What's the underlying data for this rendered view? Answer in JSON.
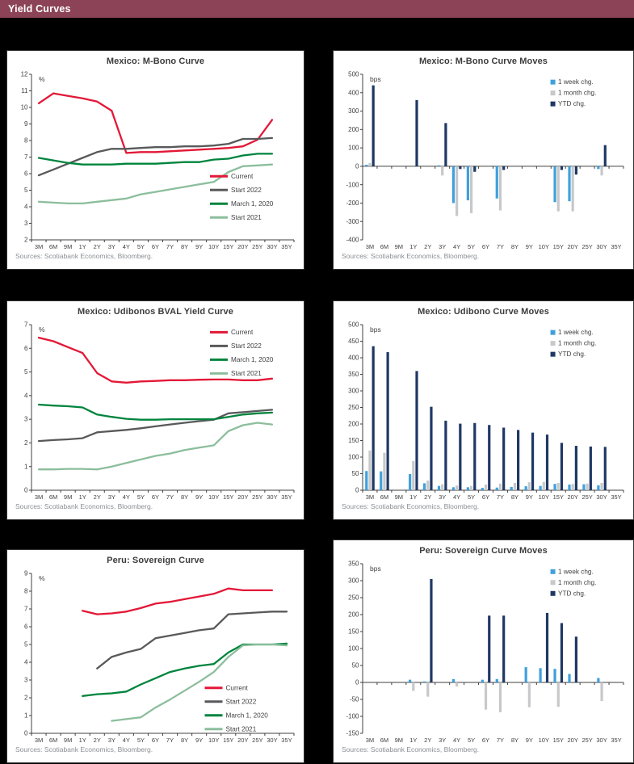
{
  "page": {
    "header": "Yield Curves",
    "header_bg": "#8C4357",
    "page_bg": "#000000"
  },
  "colors": {
    "red": "#E31837",
    "dark_gray": "#58595B",
    "green": "#00843D",
    "light_green": "#8CBE9C",
    "week_blue": "#3FA0DC",
    "month_gray": "#C7C8CA",
    "ytd_navy": "#1F3864",
    "axis": "#404040",
    "sources_text": "#8a8f94"
  },
  "chart_data": [
    {
      "type": "line",
      "title": "Mexico: M-Bono Curve",
      "unit": "%",
      "sources": "Sources: Scotiabank Economics, Bloomberg.",
      "categories": [
        "3M",
        "6M",
        "9M",
        "1Y",
        "2Y",
        "3Y",
        "4Y",
        "5Y",
        "6Y",
        "7Y",
        "8Y",
        "9Y",
        "10Y",
        "15Y",
        "20Y",
        "25Y",
        "30Y",
        "35Y"
      ],
      "ylim": [
        2,
        12
      ],
      "y_step": 1,
      "legend_anchor": "right-center",
      "series": [
        {
          "name": "Current",
          "color_key": "red",
          "values": [
            10.25,
            10.85,
            10.7,
            10.55,
            10.35,
            9.8,
            7.25,
            7.3,
            7.3,
            7.35,
            7.4,
            7.45,
            7.5,
            7.55,
            7.65,
            8.05,
            9.25,
            null
          ]
        },
        {
          "name": "Start 2022",
          "color_key": "dark_gray",
          "values": [
            5.9,
            6.25,
            6.6,
            6.95,
            7.3,
            7.5,
            7.5,
            7.55,
            7.6,
            7.6,
            7.65,
            7.65,
            7.7,
            7.8,
            8.1,
            8.1,
            8.15,
            null
          ]
        },
        {
          "name": "March 1, 2020",
          "color_key": "green",
          "values": [
            6.95,
            6.8,
            6.65,
            6.55,
            6.55,
            6.55,
            6.6,
            6.6,
            6.6,
            6.65,
            6.7,
            6.7,
            6.85,
            6.9,
            7.1,
            7.2,
            7.2,
            null
          ]
        },
        {
          "name": "Start 2021",
          "color_key": "light_green",
          "values": [
            4.3,
            4.25,
            4.2,
            4.2,
            4.3,
            4.4,
            4.5,
            4.75,
            4.9,
            5.05,
            5.2,
            5.35,
            5.5,
            6.1,
            6.45,
            6.5,
            6.55,
            null
          ]
        }
      ]
    },
    {
      "type": "bar",
      "title": "Mexico: M-Bono Curve Moves",
      "unit": "bps",
      "sources": "Sources: Scotiabank Economics, Bloomberg.",
      "categories": [
        "3M",
        "6M",
        "9M",
        "1Y",
        "2Y",
        "3Y",
        "4Y",
        "5Y",
        "6Y",
        "7Y",
        "8Y",
        "9Y",
        "10Y",
        "15Y",
        "20Y",
        "25Y",
        "30Y",
        "35Y"
      ],
      "ylim": [
        -400,
        500
      ],
      "y_step": 100,
      "legend_anchor": "top-right",
      "series": [
        {
          "name": "1 week chg.",
          "color_key": "week_blue",
          "values": [
            8,
            0,
            0,
            0,
            0,
            5,
            -200,
            -185,
            0,
            -175,
            0,
            0,
            0,
            -195,
            -190,
            0,
            -15,
            0
          ]
        },
        {
          "name": "1 month chg.",
          "color_key": "month_gray",
          "values": [
            18,
            0,
            0,
            0,
            0,
            -50,
            -270,
            -255,
            0,
            -240,
            0,
            0,
            0,
            -245,
            -245,
            0,
            -50,
            0
          ]
        },
        {
          "name": "YTD chg.",
          "color_key": "ytd_navy",
          "values": [
            440,
            0,
            0,
            360,
            0,
            235,
            -15,
            -30,
            0,
            -20,
            0,
            0,
            0,
            -20,
            -45,
            0,
            115,
            0
          ]
        }
      ]
    },
    {
      "type": "line",
      "title": "Mexico: Udibonos BVAL Yield Curve",
      "unit": "%",
      "sources": "Sources: Scotiabank Economics, Bloomberg.",
      "categories": [
        "3M",
        "6M",
        "9M",
        "1Y",
        "2Y",
        "3Y",
        "4Y",
        "5Y",
        "6Y",
        "7Y",
        "8Y",
        "9Y",
        "10Y",
        "15Y",
        "20Y",
        "25Y",
        "30Y",
        "35Y"
      ],
      "ylim": [
        0,
        7
      ],
      "y_step": 1,
      "legend_anchor": "top-right",
      "series": [
        {
          "name": "Current",
          "color_key": "red",
          "values": [
            6.45,
            6.3,
            6.05,
            5.8,
            4.95,
            4.6,
            4.55,
            4.6,
            4.62,
            4.65,
            4.65,
            4.67,
            4.68,
            4.68,
            4.65,
            4.65,
            4.72,
            null
          ]
        },
        {
          "name": "Start 2022",
          "color_key": "dark_gray",
          "values": [
            2.08,
            2.12,
            2.15,
            2.2,
            2.45,
            2.5,
            2.55,
            2.62,
            2.7,
            2.78,
            2.85,
            2.92,
            2.98,
            3.25,
            3.3,
            3.35,
            3.4,
            null
          ]
        },
        {
          "name": "March 1, 2020",
          "color_key": "green",
          "values": [
            3.62,
            3.58,
            3.55,
            3.5,
            3.2,
            3.1,
            3.02,
            2.98,
            2.98,
            3.0,
            3.0,
            3.0,
            3.0,
            3.1,
            3.2,
            3.25,
            3.28,
            null
          ]
        },
        {
          "name": "Start 2021",
          "color_key": "light_green",
          "values": [
            0.88,
            0.88,
            0.9,
            0.9,
            0.88,
            1.0,
            1.15,
            1.3,
            1.45,
            1.55,
            1.7,
            1.8,
            1.9,
            2.5,
            2.75,
            2.85,
            2.78,
            null
          ]
        }
      ]
    },
    {
      "type": "bar",
      "title": "Mexico: Udibono Curve Moves",
      "unit": "bps",
      "sources": "Sources: Scotiabank Economics, Bloomberg.",
      "categories": [
        "3M",
        "6M",
        "9M",
        "1Y",
        "2Y",
        "3Y",
        "4Y",
        "5Y",
        "6Y",
        "7Y",
        "8Y",
        "9Y",
        "10Y",
        "15Y",
        "20Y",
        "25Y",
        "30Y",
        "35Y"
      ],
      "ylim": [
        0,
        500
      ],
      "y_step": 50,
      "legend_anchor": "top-right",
      "series": [
        {
          "name": "1 week chg.",
          "color_key": "week_blue",
          "values": [
            58,
            57,
            0,
            49,
            21,
            13,
            9,
            9,
            7,
            8,
            10,
            12,
            13,
            19,
            17,
            18,
            15,
            0
          ]
        },
        {
          "name": "1 month chg.",
          "color_key": "month_gray",
          "values": [
            120,
            113,
            0,
            88,
            29,
            18,
            14,
            13,
            17,
            20,
            22,
            24,
            25,
            22,
            19,
            20,
            22,
            0
          ]
        },
        {
          "name": "YTD chg.",
          "color_key": "ytd_navy",
          "values": [
            435,
            417,
            0,
            360,
            252,
            210,
            201,
            203,
            197,
            189,
            182,
            174,
            168,
            143,
            134,
            132,
            131,
            0
          ]
        }
      ]
    },
    {
      "type": "line",
      "title": "Peru: Sovereign Curve",
      "unit": "%",
      "sources": "Sources: Scotiabank Economics, Bloomberg.",
      "categories": [
        "3M",
        "6M",
        "9M",
        "1Y",
        "2Y",
        "3Y",
        "4Y",
        "5Y",
        "6Y",
        "7Y",
        "8Y",
        "9Y",
        "10Y",
        "15Y",
        "20Y",
        "25Y",
        "30Y",
        "35Y"
      ],
      "ylim": [
        0,
        9
      ],
      "y_step": 1,
      "legend_anchor": "bottom-right",
      "series": [
        {
          "name": "Current",
          "color_key": "red",
          "values": [
            null,
            null,
            null,
            6.9,
            6.7,
            6.75,
            6.85,
            7.05,
            7.3,
            7.4,
            7.55,
            7.7,
            7.85,
            8.15,
            8.05,
            8.05,
            8.05,
            null
          ]
        },
        {
          "name": "Start 2022",
          "color_key": "dark_gray",
          "values": [
            null,
            null,
            null,
            null,
            3.65,
            4.3,
            4.55,
            4.75,
            5.35,
            5.5,
            5.65,
            5.8,
            5.9,
            6.7,
            6.75,
            6.8,
            6.85,
            6.85
          ]
        },
        {
          "name": "March 1, 2020",
          "color_key": "green",
          "values": [
            null,
            null,
            null,
            2.1,
            2.2,
            2.25,
            2.35,
            2.75,
            3.1,
            3.45,
            3.65,
            3.8,
            3.9,
            4.55,
            5.0,
            5.0,
            5.0,
            5.05
          ]
        },
        {
          "name": "Start 2021",
          "color_key": "light_green",
          "values": [
            null,
            null,
            null,
            null,
            null,
            0.7,
            0.8,
            0.9,
            1.45,
            1.9,
            2.4,
            2.9,
            3.45,
            4.3,
            4.95,
            5.0,
            5.0,
            4.95
          ]
        }
      ]
    },
    {
      "type": "bar",
      "title": "Peru: Sovereign Curve Moves",
      "unit": "bps",
      "sources": "Sources: Scotiabank Economics, Bloomberg.",
      "categories": [
        "3M",
        "6M",
        "9M",
        "1Y",
        "2Y",
        "3Y",
        "4Y",
        "5Y",
        "6Y",
        "7Y",
        "8Y",
        "9Y",
        "10Y",
        "15Y",
        "20Y",
        "25Y",
        "30Y",
        "35Y"
      ],
      "ylim": [
        -150,
        350
      ],
      "y_step": 50,
      "legend_anchor": "top-right",
      "series": [
        {
          "name": "1 week chg.",
          "color_key": "week_blue",
          "values": [
            0,
            0,
            0,
            8,
            3,
            0,
            10,
            0,
            8,
            10,
            0,
            45,
            42,
            40,
            25,
            0,
            13,
            0
          ]
        },
        {
          "name": "1 month chg.",
          "color_key": "month_gray",
          "values": [
            0,
            0,
            0,
            -25,
            -42,
            0,
            -12,
            0,
            -80,
            -88,
            0,
            -73,
            0,
            -72,
            0,
            0,
            -55,
            0
          ]
        },
        {
          "name": "YTD chg.",
          "color_key": "ytd_navy",
          "values": [
            0,
            0,
            0,
            0,
            305,
            0,
            0,
            0,
            197,
            197,
            0,
            0,
            205,
            175,
            135,
            0,
            0,
            0
          ]
        }
      ]
    }
  ]
}
